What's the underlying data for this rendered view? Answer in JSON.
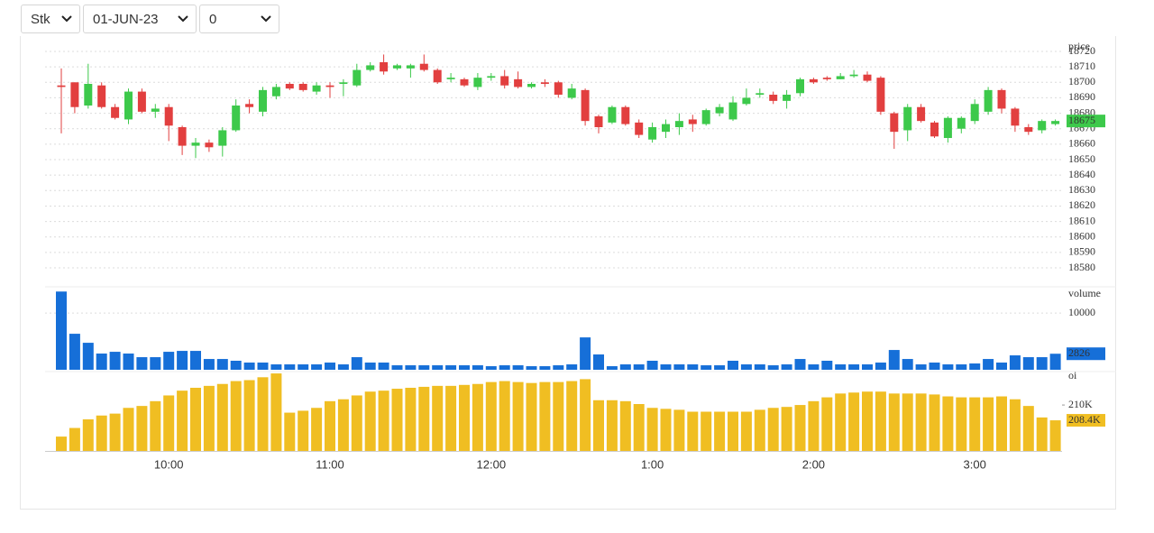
{
  "controls": {
    "type": "Stk",
    "date": "01-JUN-23",
    "strike": "0"
  },
  "chart_data": [
    {
      "type": "candlestick",
      "y_label": "price",
      "categories": [
        null,
        null,
        null,
        null,
        null,
        null,
        null,
        null,
        "10:00",
        null,
        null,
        null,
        null,
        null,
        null,
        null,
        null,
        null,
        null,
        null,
        "11:00",
        null,
        null,
        null,
        null,
        null,
        null,
        null,
        null,
        null,
        null,
        null,
        "12:00",
        null,
        null,
        null,
        null,
        null,
        null,
        null,
        null,
        null,
        null,
        null,
        "1:00",
        null,
        null,
        null,
        null,
        null,
        null,
        null,
        null,
        null,
        null,
        null,
        "2:00",
        null,
        null,
        null,
        null,
        null,
        null,
        null,
        null,
        null,
        null,
        null,
        "3:00",
        null,
        null,
        null,
        null,
        null,
        null
      ],
      "open": [
        18698,
        18700,
        18685,
        18698,
        18684,
        18676,
        18694,
        18681,
        18684,
        18671,
        18659,
        18661,
        18659,
        18669,
        18686,
        18681,
        18691,
        18699,
        18699,
        18694,
        18698,
        18699,
        18698,
        18708,
        18713,
        18709,
        18709,
        18712,
        18708,
        18702,
        18702,
        18697,
        18703,
        18704,
        18702,
        18697,
        18700,
        18700,
        18690,
        18695,
        18678,
        18674,
        18684,
        18674,
        18663,
        18668,
        18671,
        18676,
        18673,
        18680,
        18676,
        18686,
        18692,
        18692,
        18688,
        18693,
        18702,
        18703,
        18702,
        18704,
        18705,
        18703,
        18680,
        18669,
        18684,
        18674,
        18664,
        18670,
        18675,
        18681,
        18695,
        18683,
        18671,
        18669,
        18673
      ],
      "high": [
        18709,
        18700,
        18712,
        18700,
        18686,
        18696,
        18696,
        18686,
        18686,
        18672,
        18664,
        18663,
        18671,
        18689,
        18689,
        18697,
        18699,
        18700,
        18700,
        18700,
        18700,
        18702,
        18712,
        18713,
        18718,
        18712,
        18712,
        18718,
        18709,
        18706,
        18703,
        18706,
        18706,
        18708,
        18707,
        18700,
        18702,
        18701,
        18699,
        18696,
        18679,
        18685,
        18685,
        18676,
        18674,
        18676,
        18680,
        18679,
        18683,
        18686,
        18691,
        18696,
        18696,
        18694,
        18695,
        18703,
        18703,
        18704,
        18706,
        18708,
        18707,
        18704,
        18681,
        18686,
        18686,
        18675,
        18678,
        18678,
        18689,
        18697,
        18696,
        18684,
        18673,
        18676,
        18676
      ],
      "low": [
        18667,
        18680,
        18683,
        18683,
        18676,
        18673,
        18680,
        18677,
        18662,
        18653,
        18651,
        18655,
        18652,
        18668,
        18680,
        18678,
        18689,
        18695,
        18694,
        18692,
        18690,
        18691,
        18697,
        18707,
        18705,
        18708,
        18703,
        18707,
        18699,
        18700,
        18697,
        18695,
        18701,
        18696,
        18696,
        18696,
        18697,
        18690,
        18689,
        18672,
        18667,
        18673,
        18672,
        18664,
        18661,
        18664,
        18666,
        18668,
        18672,
        18678,
        18675,
        18685,
        18690,
        18686,
        18683,
        18691,
        18699,
        18701,
        18702,
        18703,
        18700,
        18679,
        18657,
        18662,
        18674,
        18664,
        18661,
        18667,
        18673,
        18679,
        18680,
        18668,
        18666,
        18667,
        18672
      ],
      "close": [
        18697,
        18684,
        18699,
        18684,
        18677,
        18694,
        18681,
        18683,
        18672,
        18659,
        18661,
        18658,
        18669,
        18685,
        18684,
        18695,
        18697,
        18696,
        18695,
        18698,
        18697,
        18700,
        18708,
        18711,
        18707,
        18711,
        18711,
        18708,
        18700,
        18703,
        18698,
        18703,
        18704,
        18698,
        18697,
        18699,
        18699,
        18692,
        18696,
        18675,
        18671,
        18684,
        18673,
        18666,
        18671,
        18673,
        18675,
        18673,
        18682,
        18684,
        18687,
        18690,
        18693,
        18688,
        18692,
        18702,
        18700,
        18702,
        18704,
        18705,
        18701,
        18681,
        18668,
        18684,
        18675,
        18665,
        18677,
        18677,
        18686,
        18695,
        18683,
        18672,
        18668,
        18675,
        18675
      ],
      "up_color": "#3dc94b",
      "down_color": "#e23f3f",
      "ylim": [
        18575,
        18727
      ],
      "yticks": [
        18580,
        18590,
        18600,
        18610,
        18620,
        18630,
        18640,
        18650,
        18660,
        18670,
        18680,
        18690,
        18700,
        18710,
        18720
      ],
      "grid": true
    },
    {
      "type": "bar",
      "y_label": "volume",
      "color": "#166fd8",
      "values": [
        13800,
        6350,
        4760,
        2860,
        3170,
        2860,
        2220,
        2220,
        3170,
        3330,
        3330,
        1900,
        1900,
        1590,
        1270,
        1270,
        950,
        950,
        950,
        950,
        1270,
        950,
        2220,
        1270,
        1270,
        790,
        790,
        790,
        790,
        790,
        790,
        790,
        630,
        790,
        790,
        630,
        630,
        790,
        950,
        5710,
        2700,
        630,
        950,
        950,
        1590,
        950,
        950,
        950,
        790,
        790,
        1590,
        950,
        950,
        790,
        950,
        1900,
        950,
        1590,
        950,
        950,
        950,
        1270,
        3490,
        1900,
        950,
        1270,
        950,
        950,
        1110,
        1900,
        1270,
        2540,
        2220,
        2220,
        2826
      ],
      "ylim": [
        0,
        14000
      ],
      "yticks": [
        10000
      ],
      "grid": true
    },
    {
      "type": "bar",
      "y_label": "oi",
      "color": "#f0be22",
      "values": [
        206700,
        207600,
        208500,
        208900,
        209100,
        209700,
        209900,
        210400,
        211000,
        211500,
        211800,
        212000,
        212200,
        212500,
        212600,
        212900,
        213300,
        209200,
        209400,
        209700,
        210400,
        210600,
        211000,
        211400,
        211500,
        211700,
        211800,
        211900,
        212000,
        212000,
        212100,
        212200,
        212400,
        212500,
        212400,
        212300,
        212400,
        212400,
        212500,
        212700,
        210500,
        210500,
        210400,
        210100,
        209700,
        209600,
        209500,
        209300,
        209300,
        209300,
        209300,
        209300,
        209500,
        209700,
        209800,
        210000,
        210400,
        210800,
        211200,
        211300,
        211400,
        211400,
        211200,
        211200,
        211200,
        211100,
        210900,
        210800,
        210800,
        210800,
        210900,
        210600,
        209900,
        208700,
        208400
      ],
      "last_value_label": "208.4K",
      "ylim": [
        205200,
        213400
      ],
      "yticks": [
        {
          "value": 210000,
          "label": "210K"
        }
      ],
      "grid": false
    }
  ]
}
